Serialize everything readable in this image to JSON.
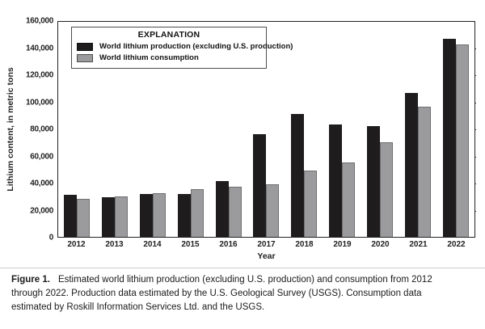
{
  "figure": {
    "caption": {
      "label": "Figure 1.",
      "line1": "Estimated world lithium production (excluding U.S. production) and consumption from 2012",
      "line2": "through 2022. Production data estimated by the U.S. Geological Survey (USGS). Consumption data",
      "line3": "estimated by Roskill Information Services Ltd. and the USGS."
    }
  },
  "legend": {
    "title": "EXPLANATION"
  },
  "colors": {
    "production": "#1e1c1c",
    "consumption": "#9b9b9d",
    "frame": "#222222"
  },
  "chart_data": {
    "type": "bar",
    "title": "",
    "xlabel": "Year",
    "ylabel": "Lithium content, in metric tons",
    "categories": [
      "2012",
      "2013",
      "2014",
      "2015",
      "2016",
      "2017",
      "2018",
      "2019",
      "2020",
      "2021",
      "2022"
    ],
    "series": [
      {
        "name": "World lithium production (excluding U.S. production)",
        "color": "#1e1c1c",
        "values": [
          31000,
          29000,
          31500,
          31500,
          41000,
          76000,
          91000,
          83000,
          82000,
          106000,
          146000
        ]
      },
      {
        "name": "World lithium consumption",
        "color": "#9b9b9d",
        "values": [
          28000,
          30000,
          32000,
          35000,
          37000,
          39000,
          49000,
          55000,
          70000,
          96000,
          142000
        ]
      }
    ],
    "ylim": [
      0,
      160000
    ],
    "ytick_interval": 20000,
    "ytick_labels": [
      "160,000",
      "140,000",
      "120,000",
      "100,000",
      "80,000",
      "60,000",
      "40,000",
      "20,000",
      "0"
    ],
    "grid": false,
    "legend_position": "top-left-inside"
  }
}
